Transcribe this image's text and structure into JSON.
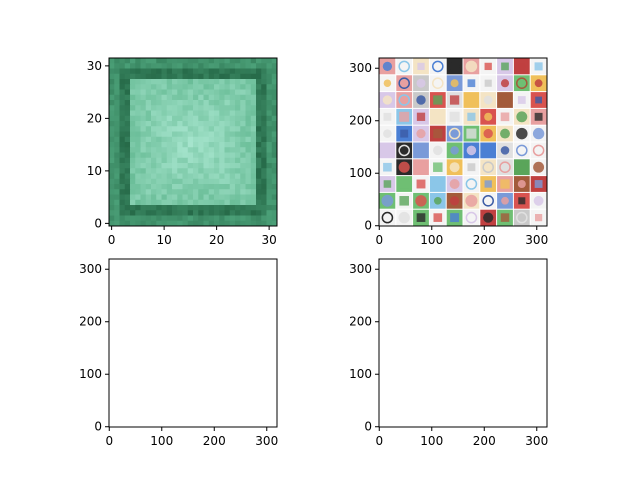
{
  "chart_data": [
    {
      "type": "heatmap",
      "content": "blurred mean image, teal/green tones",
      "xlim": [
        -0.5,
        31.5
      ],
      "ylim": [
        31.5,
        -0.5
      ],
      "x_ticks": [
        0,
        10,
        20,
        30
      ],
      "y_ticks": [
        0,
        10,
        20,
        30
      ],
      "x_tick_labels": [
        "0",
        "10",
        "20",
        "30"
      ],
      "y_tick_labels": [
        "0",
        "10",
        "20",
        "30"
      ],
      "colors": {
        "light": "#a8e6cf",
        "mid": "#56b086",
        "dark": "#1e5e3e",
        "border": "#3a8a60"
      }
    },
    {
      "type": "heatmap",
      "content": "10x10 grid of small tile images",
      "xlim": [
        -0.5,
        319.5
      ],
      "ylim": [
        319.5,
        -0.5
      ],
      "x_ticks": [
        0,
        100,
        200,
        300
      ],
      "y_ticks": [
        0,
        100,
        200,
        300
      ],
      "x_tick_labels": [
        "0",
        "100",
        "200",
        "300"
      ],
      "y_tick_labels": [
        "0",
        "100",
        "200",
        "300"
      ],
      "grid_size": [
        10,
        10
      ],
      "palette": [
        "#d9534f",
        "#4a7fd4",
        "#6fbf73",
        "#c9c9c9",
        "#e8a0a0",
        "#3b5ba5",
        "#f0c05a",
        "#8bc6e8",
        "#a35b3b",
        "#e0e0e0",
        "#5aa55a",
        "#c04040",
        "#7a9ad8",
        "#d8c8e8",
        "#2a2a2a",
        "#f4e4c4"
      ]
    },
    {
      "type": "heatmap",
      "content": "empty",
      "xlim": [
        -0.5,
        319.5
      ],
      "ylim": [
        319.5,
        -0.5
      ],
      "x_ticks": [
        0,
        100,
        200,
        300
      ],
      "y_ticks": [
        0,
        100,
        200,
        300
      ],
      "x_tick_labels": [
        "0",
        "100",
        "200",
        "300"
      ],
      "y_tick_labels": [
        "0",
        "100",
        "200",
        "300"
      ]
    },
    {
      "type": "heatmap",
      "content": "empty",
      "xlim": [
        -0.5,
        319.5
      ],
      "ylim": [
        319.5,
        -0.5
      ],
      "x_ticks": [
        0,
        100,
        200,
        300
      ],
      "y_ticks": [
        0,
        100,
        200,
        300
      ],
      "x_tick_labels": [
        "0",
        "100",
        "200",
        "300"
      ],
      "y_tick_labels": [
        "0",
        "100",
        "200",
        "300"
      ]
    }
  ]
}
